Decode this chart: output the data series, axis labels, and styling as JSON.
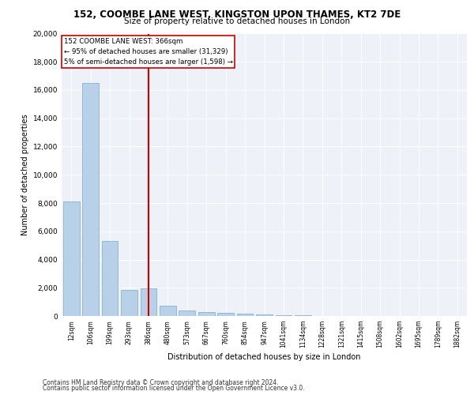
{
  "title_line1": "152, COOMBE LANE WEST, KINGSTON UPON THAMES, KT2 7DE",
  "title_line2": "Size of property relative to detached houses in London",
  "xlabel": "Distribution of detached houses by size in London",
  "ylabel": "Number of detached properties",
  "categories": [
    "12sqm",
    "106sqm",
    "199sqm",
    "293sqm",
    "386sqm",
    "480sqm",
    "573sqm",
    "667sqm",
    "760sqm",
    "854sqm",
    "947sqm",
    "1041sqm",
    "1134sqm",
    "1228sqm",
    "1321sqm",
    "1415sqm",
    "1508sqm",
    "1602sqm",
    "1695sqm",
    "1789sqm",
    "1882sqm"
  ],
  "values": [
    8100,
    16500,
    5300,
    1850,
    1950,
    700,
    380,
    280,
    200,
    150,
    100,
    50,
    30,
    20,
    15,
    10,
    8,
    5,
    4,
    3,
    2
  ],
  "bar_color": "#b8d0e8",
  "bar_edge_color": "#7aaac8",
  "vline_index": 4,
  "vline_color": "#cc0000",
  "annotation_text": "152 COOMBE LANE WEST: 366sqm\n← 95% of detached houses are smaller (31,329)\n5% of semi-detached houses are larger (1,598) →",
  "annotation_box_color": "#ffffff",
  "annotation_box_edge": "#cc0000",
  "ylim": [
    0,
    20000
  ],
  "yticks": [
    0,
    2000,
    4000,
    6000,
    8000,
    10000,
    12000,
    14000,
    16000,
    18000,
    20000
  ],
  "background_color": "#eef2f8",
  "grid_color": "#ffffff",
  "footer_line1": "Contains HM Land Registry data © Crown copyright and database right 2024.",
  "footer_line2": "Contains public sector information licensed under the Open Government Licence v3.0."
}
